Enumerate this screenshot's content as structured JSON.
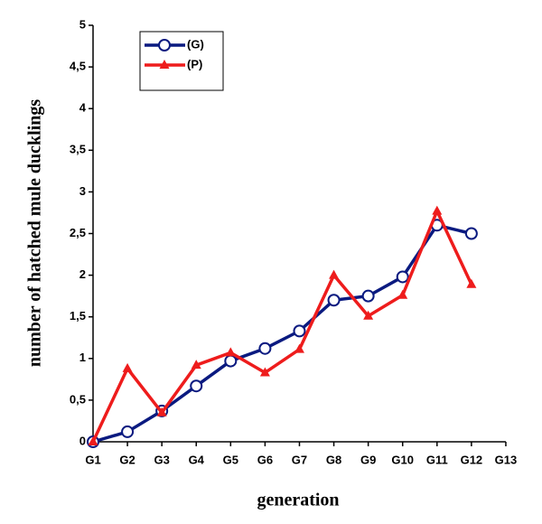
{
  "chart_data": {
    "type": "line",
    "x_label": "generation",
    "y_label": "number of hatched mule ducklings",
    "categories": [
      "G1",
      "G2",
      "G3",
      "G4",
      "G5",
      "G6",
      "G7",
      "G8",
      "G9",
      "G10",
      "G11",
      "G12",
      "G13"
    ],
    "series": [
      {
        "name": "(G)",
        "color": "#0a1a80",
        "marker": "circle",
        "values": [
          0,
          0.12,
          0.37,
          0.67,
          0.97,
          1.12,
          1.33,
          1.7,
          1.75,
          1.98,
          2.6,
          2.5,
          null
        ]
      },
      {
        "name": "(P)",
        "color": "#ee1c1c",
        "marker": "triangle",
        "values": [
          0,
          0.88,
          0.35,
          0.92,
          1.07,
          0.83,
          1.11,
          2.0,
          1.51,
          1.76,
          2.77,
          1.89,
          null
        ]
      }
    ],
    "ylim": [
      0,
      5
    ],
    "yticks": [
      0,
      {
        "value": 0.5,
        "label": "0,5"
      },
      1,
      {
        "value": 1.5,
        "label": "1,5"
      },
      2,
      {
        "value": 2.5,
        "label": "2,5"
      },
      3,
      {
        "value": 3.5,
        "label": "3,5"
      },
      4,
      {
        "value": 4.5,
        "label": "4,5"
      },
      5
    ],
    "legend": "upper left"
  }
}
